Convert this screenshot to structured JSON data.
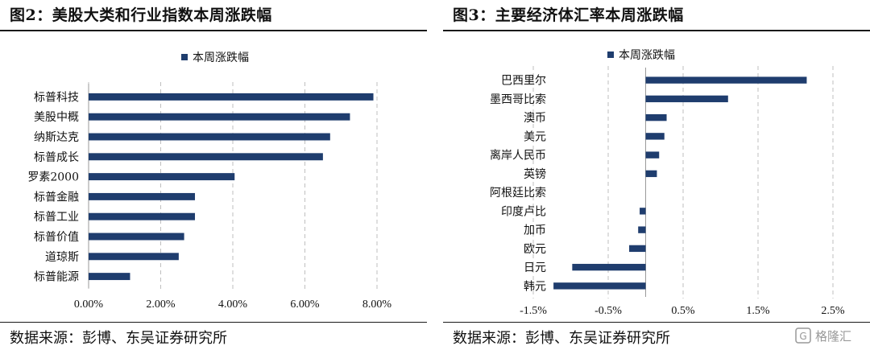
{
  "left_panel": {
    "title": "图2：美股大类和行业指数本周涨跌幅",
    "source": "数据来源：彭博、东吴证券研究所"
  },
  "right_panel": {
    "title": "图3：主要经济体汇率本周涨跌幅",
    "source": "数据来源：彭博、东吴证券研究所"
  },
  "watermark": {
    "text": "格隆汇"
  },
  "chart_data": [
    {
      "type": "bar",
      "orientation": "horizontal",
      "categories": [
        "标普科技",
        "美股中概",
        "纳斯达克",
        "标普成长",
        "罗素2000",
        "标普金融",
        "标普工业",
        "标普价值",
        "道琼斯",
        "标普能源"
      ],
      "series": [
        {
          "name": "本周涨跌幅",
          "values": [
            7.9,
            7.25,
            6.7,
            6.5,
            4.05,
            2.95,
            2.95,
            2.65,
            2.5,
            1.15
          ]
        }
      ],
      "xlim": [
        0,
        8
      ],
      "xticks": [
        0,
        2,
        4,
        6,
        8
      ],
      "tick_labels": [
        "0.00%",
        "2.00%",
        "4.00%",
        "6.00%",
        "8.00%"
      ],
      "grid": "vertical-dashed",
      "legend": "top-center",
      "color": "#1f3d6e"
    },
    {
      "type": "bar",
      "orientation": "horizontal",
      "categories": [
        "巴西里尔",
        "墨西哥比索",
        "澳币",
        "美元",
        "离岸人民币",
        "英镑",
        "阿根廷比索",
        "印度卢比",
        "加币",
        "欧元",
        "日元",
        "韩元"
      ],
      "series": [
        {
          "name": "本周涨跌幅",
          "values": [
            2.15,
            1.1,
            0.28,
            0.25,
            0.18,
            0.15,
            0.0,
            -0.08,
            -0.1,
            -0.22,
            -0.98,
            -1.23
          ]
        }
      ],
      "xlim": [
        -1.5,
        2.5
      ],
      "xticks": [
        -1.5,
        -0.5,
        0.5,
        1.5,
        2.5
      ],
      "tick_labels": [
        "-1.5%",
        "-0.5%",
        "0.5%",
        "1.5%",
        "2.5%"
      ],
      "grid": "vertical-dashed",
      "legend": "top-center",
      "color": "#1f3d6e"
    }
  ]
}
